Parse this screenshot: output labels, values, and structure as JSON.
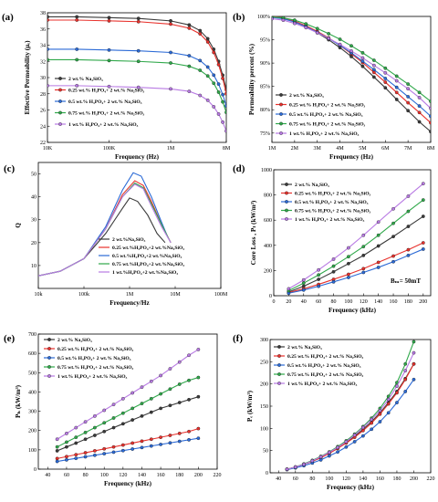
{
  "figure_labels": [
    "(a)",
    "(b)",
    "(c)",
    "(d)",
    "(e)",
    "(f)"
  ],
  "legend_default": [
    "2 wt.% Na₂SiO₃",
    "0.25 wt.% H₃PO₄+ 2 wt.% Na₂SiO₃",
    "0.5 wt.% H₃PO₄+ 2 wt.% Na₂SiO₃",
    "0.75 wt.% H₃PO₄+ 2 wt.% Na₂SiO₃",
    "1 wt.% H₃PO₄+ 2 wt.% Na₂SiO₃"
  ],
  "series_colors": [
    "#3a3a3a",
    "#e8312c",
    "#2b6ad6",
    "#2fa84a",
    "#b87ae3"
  ],
  "chart_data": [
    {
      "id": "a",
      "type": "line",
      "xscale": "log",
      "xlim": [
        10000,
        8000000
      ],
      "ylim": [
        22,
        38
      ],
      "xticks": [
        10000,
        100000,
        1000000,
        8000000
      ],
      "xticklabels": [
        "10K",
        "100K",
        "1M",
        "8M"
      ],
      "yticks": [
        22,
        24,
        26,
        28,
        30,
        32,
        34,
        36,
        38
      ],
      "xlabel": "Frequency (Hz)",
      "ylabel": "Effective Permeability (μₑ)",
      "legend_position": "lower-left",
      "x": [
        10000,
        30000,
        100000,
        300000,
        1000000,
        2000000,
        3000000,
        4000000,
        5000000,
        6000000,
        7000000,
        8000000
      ],
      "series": [
        {
          "values": [
            37.5,
            37.5,
            37.4,
            37.3,
            37.0,
            36.5,
            35.8,
            34.8,
            33.5,
            32.0,
            30.3,
            28.5
          ]
        },
        {
          "values": [
            37.1,
            37.1,
            37.0,
            36.9,
            36.6,
            36.1,
            35.4,
            34.4,
            33.1,
            31.6,
            29.9,
            28.0
          ]
        },
        {
          "values": [
            33.5,
            33.5,
            33.4,
            33.3,
            33.1,
            32.7,
            32.1,
            31.3,
            30.3,
            29.2,
            27.9,
            26.5
          ]
        },
        {
          "values": [
            32.2,
            32.2,
            32.1,
            32.0,
            31.8,
            31.4,
            30.9,
            30.2,
            29.3,
            28.2,
            27.0,
            25.7
          ]
        },
        {
          "values": [
            29.0,
            29.0,
            28.9,
            28.8,
            28.6,
            28.3,
            27.8,
            27.2,
            26.4,
            25.5,
            24.5,
            23.4
          ]
        }
      ]
    },
    {
      "id": "b",
      "type": "line",
      "xlim": [
        1000000,
        8000000
      ],
      "ylim": [
        73,
        100
      ],
      "xticks": [
        1000000,
        2000000,
        3000000,
        4000000,
        5000000,
        6000000,
        7000000,
        8000000
      ],
      "xticklabels": [
        "1M",
        "2M",
        "3M",
        "4M",
        "5M",
        "6M",
        "7M",
        "8M"
      ],
      "yticks": [
        75,
        80,
        85,
        90,
        95,
        100
      ],
      "yticklabels": [
        "75%",
        "80%",
        "85%",
        "90%",
        "95%",
        "100%"
      ],
      "xlabel": "Frequency (Hz)",
      "ylabel": "Permeability percent (%)",
      "legend_position": "lower-left",
      "x": [
        1000000,
        1500000,
        2000000,
        2500000,
        3000000,
        3500000,
        4000000,
        4500000,
        5000000,
        5500000,
        6000000,
        6500000,
        7000000,
        7500000,
        8000000
      ],
      "series": [
        {
          "values": [
            100,
            99.6,
            98.8,
            97.8,
            96.5,
            95.0,
            93.3,
            91.4,
            89.3,
            87.0,
            84.7,
            82.2,
            79.8,
            77.4,
            75.3
          ]
        },
        {
          "values": [
            100,
            99.7,
            99.0,
            98.0,
            96.8,
            95.4,
            93.8,
            92.0,
            90.1,
            88.0,
            85.9,
            83.7,
            81.5,
            79.4,
            77.2
          ]
        },
        {
          "values": [
            99.8,
            99.5,
            98.8,
            97.8,
            96.6,
            95.3,
            93.8,
            92.2,
            90.4,
            88.6,
            86.7,
            84.8,
            82.8,
            80.8,
            78.6
          ]
        },
        {
          "values": [
            99.9,
            99.7,
            99.2,
            98.4,
            97.4,
            96.3,
            95.1,
            93.7,
            92.2,
            90.6,
            88.9,
            87.2,
            85.5,
            83.7,
            81.8
          ]
        },
        {
          "values": [
            99.5,
            99.2,
            98.5,
            97.6,
            96.5,
            95.3,
            94.0,
            92.6,
            91.1,
            89.5,
            87.9,
            86.2,
            84.5,
            82.6,
            80.3
          ]
        }
      ]
    },
    {
      "id": "c",
      "type": "line",
      "xscale": "log",
      "xlim": [
        10000,
        100000000
      ],
      "ylim": [
        0,
        55
      ],
      "xticks": [
        10000,
        100000,
        1000000,
        10000000,
        100000000
      ],
      "xticklabels": [
        "10k",
        "100k",
        "1M",
        "10M",
        "100M"
      ],
      "yticks": [
        10,
        20,
        30,
        40,
        50
      ],
      "xlabel": "Frequency/Hz",
      "ylabel": "Q",
      "legend_position": "lower-right",
      "series": [
        {
          "x": [
            10000,
            30000,
            100000,
            300000,
            700000,
            1000000,
            1500000,
            2500000,
            4000000,
            6000000
          ],
          "values": [
            5.5,
            7.5,
            13,
            24,
            35,
            39.5,
            38,
            32,
            24,
            20
          ]
        },
        {
          "x": [
            10000,
            30000,
            100000,
            300000,
            700000,
            1300000,
            2000000,
            3000000,
            5000000,
            8000000
          ],
          "values": [
            5.5,
            7.5,
            13,
            26,
            41,
            47,
            45,
            38,
            28,
            20
          ]
        },
        {
          "x": [
            10000,
            30000,
            100000,
            300000,
            700000,
            1200000,
            1800000,
            3000000,
            5000000,
            7000000
          ],
          "values": [
            5.5,
            7.5,
            13,
            27,
            43,
            50.5,
            49,
            40,
            29,
            22
          ]
        },
        {
          "x": [
            10000,
            30000,
            100000,
            300000,
            700000,
            1300000,
            2000000,
            3000000,
            5000000,
            8000000
          ],
          "values": [
            5.5,
            7.5,
            13,
            26,
            40,
            46,
            44,
            37,
            28,
            20
          ]
        },
        {
          "x": [
            10000,
            30000,
            100000,
            300000,
            700000,
            1300000,
            2000000,
            3000000,
            5000000,
            8000000
          ],
          "values": [
            5.5,
            7.5,
            13,
            26,
            40,
            45.5,
            43.5,
            36,
            27,
            20
          ]
        }
      ],
      "legend": [
        "2 wt.%Na₂SiO₃",
        "0.25 wt.%H₃PO₄+2 wt.%Na₂SiO₃",
        "0.5 wt.%H₃PO₄+2 wt.%Na₂SiO₃",
        "0.75 wt.%H₃PO₄+2 wt.%Na₂SiO₃",
        "1 wt.%H₃PO₄+2 wt.%Na₂SiO₃"
      ]
    },
    {
      "id": "d",
      "type": "line",
      "xlim": [
        0,
        210
      ],
      "ylim": [
        0,
        1000
      ],
      "xticks": [
        0,
        20,
        40,
        60,
        80,
        100,
        120,
        140,
        160,
        180,
        200
      ],
      "yticks": [
        0,
        200,
        400,
        600,
        800,
        1000
      ],
      "xlabel": "Frequency (kHz)",
      "ylabel": "Core Loss , Pₗ (kW/m³)",
      "legend_position": "upper-left",
      "annotation": "Bₘ= 50mT",
      "x": [
        20,
        40,
        60,
        80,
        100,
        120,
        140,
        160,
        180,
        200
      ],
      "series": [
        {
          "values": [
            30,
            75,
            130,
            190,
            255,
            320,
            395,
            470,
            550,
            630
          ]
        },
        {
          "values": [
            25,
            55,
            90,
            130,
            170,
            215,
            265,
            315,
            365,
            420
          ]
        },
        {
          "values": [
            20,
            45,
            75,
            110,
            145,
            185,
            225,
            270,
            320,
            370
          ]
        },
        {
          "values": [
            40,
            100,
            165,
            235,
            310,
            390,
            480,
            575,
            670,
            760
          ]
        },
        {
          "values": [
            55,
            125,
            205,
            290,
            380,
            480,
            585,
            690,
            790,
            890
          ]
        }
      ],
      "legend": [
        "2 wt.% Na₂SiO₃",
        "0.25 wt.% H₃PO₄+ 2 wt.% Na₂SiO₃",
        "0.5 wt.% H₃PO₄+ 2 wt.% Na₂SiO₃",
        "0.75 wt.% H₃PO₄+ 2 wt.% Na₂SiO₃",
        "1 wt.% H₃PO₄+ 2 wt.% Na₂SiO₃"
      ]
    },
    {
      "id": "e",
      "type": "line",
      "xlim": [
        30,
        220
      ],
      "ylim": [
        0,
        700
      ],
      "xticks": [
        40,
        60,
        80,
        100,
        120,
        140,
        160,
        180,
        200,
        220
      ],
      "yticks": [
        0,
        100,
        200,
        300,
        400,
        500,
        600,
        700
      ],
      "xlabel": "Frequency (kHz)",
      "ylabel": "Pₕ (kW/m³)",
      "legend_position": "upper-left",
      "x": [
        50,
        60,
        70,
        80,
        90,
        100,
        110,
        120,
        130,
        140,
        150,
        160,
        170,
        180,
        190,
        200
      ],
      "series": [
        {
          "values": [
            95,
            115,
            135,
            155,
            175,
            195,
            215,
            235,
            255,
            275,
            295,
            315,
            330,
            345,
            360,
            375
          ]
        },
        {
          "values": [
            55,
            65,
            75,
            85,
            95,
            105,
            115,
            125,
            135,
            145,
            155,
            165,
            175,
            185,
            195,
            210
          ]
        },
        {
          "values": [
            40,
            48,
            56,
            64,
            72,
            80,
            88,
            96,
            104,
            112,
            120,
            128,
            136,
            144,
            152,
            160
          ]
        },
        {
          "values": [
            115,
            140,
            165,
            190,
            215,
            240,
            265,
            290,
            315,
            340,
            365,
            390,
            415,
            440,
            460,
            475
          ]
        },
        {
          "values": [
            155,
            185,
            215,
            245,
            275,
            305,
            335,
            365,
            395,
            425,
            455,
            485,
            520,
            555,
            590,
            620
          ]
        }
      ],
      "legend": [
        "2 wt.% Na₂SiO₃",
        "0.25 wt.% H₃PO₄+ 2 wt.% Na₂SiO₃",
        "0.5 wt.% H₃PO₄+ 2 wt.% Na₂SiO₃",
        "0.75 wt.% H₃PO₄+ 2 wt.% Na₂SiO₃",
        "1 wt.% H₃PO₄+ 2 wt.% Na₂SiO₃"
      ]
    },
    {
      "id": "f",
      "type": "line",
      "xlim": [
        30,
        220
      ],
      "ylim": [
        0,
        300
      ],
      "xticks": [
        40,
        60,
        80,
        100,
        120,
        140,
        160,
        180,
        200,
        220
      ],
      "yticks": [
        0,
        50,
        100,
        150,
        200,
        250,
        300
      ],
      "xlabel": "Frequency (kHz)",
      "ylabel": "Pₑ (kW/m³)",
      "legend_position": "upper-left",
      "x": [
        50,
        60,
        70,
        80,
        90,
        100,
        110,
        120,
        130,
        140,
        150,
        160,
        170,
        180,
        190,
        200
      ],
      "series": [
        {
          "values": [
            8,
            13,
            19,
            26,
            34,
            44,
            55,
            68,
            82,
            98,
            115,
            135,
            158,
            183,
            212,
            245
          ]
        },
        {
          "values": [
            8,
            13,
            19,
            26,
            34,
            44,
            55,
            67,
            80,
            95,
            112,
            132,
            155,
            180,
            210,
            245
          ]
        },
        {
          "values": [
            7,
            11,
            16,
            22,
            29,
            38,
            47,
            58,
            70,
            83,
            98,
            115,
            135,
            158,
            183,
            210
          ]
        },
        {
          "values": [
            8,
            13,
            20,
            28,
            37,
            47,
            59,
            72,
            87,
            104,
            123,
            145,
            172,
            203,
            245,
            295
          ]
        },
        {
          "values": [
            8,
            13,
            19,
            27,
            36,
            46,
            57,
            70,
            85,
            102,
            120,
            140,
            165,
            195,
            230,
            270
          ]
        }
      ],
      "legend": [
        "2 wt.% Na₂SiO₃",
        "0.25 wt.% H₃PO₄+ 2 wt.% Na₂SiO₃",
        "0.5 wt.% H₃PO₄+ 2 wt.% Na₂SiO₃",
        "0.75 wt.% H₃PO₄+ 2 wt.% Na₂SiO₃",
        "1 wt.% H₃PO₄+ 2 wt.% Na₂SiO₃"
      ]
    }
  ]
}
